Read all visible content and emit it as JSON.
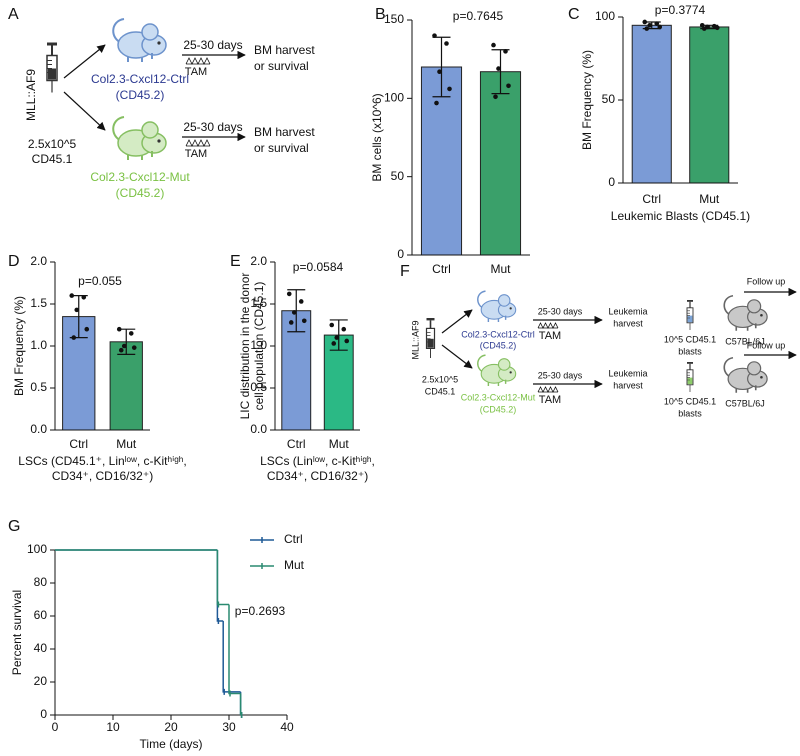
{
  "diagram_a": {
    "panel_label": "A",
    "donor": "MLL::AF9",
    "dose": "2.5x10^5",
    "dose_marker": "CD45.1",
    "groups": [
      {
        "name": "Col2.3-Cxcl12-Ctrl",
        "marker": "(CD45.2)",
        "time": "25-30 days",
        "treatment": "TAM",
        "outcome": [
          "BM harvest",
          "or survival"
        ]
      },
      {
        "name": "Col2.3-Cxcl12-Mut",
        "marker": "(CD45.2)",
        "time": "25-30 days",
        "treatment": "TAM",
        "outcome": [
          "BM harvest",
          "or survival"
        ]
      }
    ]
  },
  "diagram_f": {
    "panel_label": "F",
    "donor": "MLL::AF9",
    "dose": "2.5x10^5",
    "dose_marker": "CD45.1",
    "groups": [
      {
        "name": "Col2.3-Cxcl12-Ctrl",
        "marker": "(CD45.2)",
        "time": "25-30 days",
        "treatment": "TAM",
        "harvest": [
          "Leukemia",
          "harvest"
        ],
        "transplant": [
          "10^5 CD45.1",
          "blasts"
        ],
        "recipient": "C57BL/6J",
        "followup": "Follow up"
      },
      {
        "name": "Col2.3-Cxcl12-Mut",
        "marker": "(CD45.2)",
        "time": "25-30 days",
        "treatment": "TAM",
        "harvest": [
          "Leukemia",
          "harvest"
        ],
        "transplant": [
          "10^5 CD45.1",
          "blasts"
        ],
        "recipient": "C57BL/6J",
        "followup": "Follow up"
      }
    ]
  },
  "chart_data": [
    {
      "type": "bar",
      "panel_label": "B",
      "categories": [
        "Ctrl",
        "Mut"
      ],
      "values": [
        120,
        117
      ],
      "errors": [
        19,
        14
      ],
      "points": [
        [
          140,
          135,
          117,
          106,
          97
        ],
        [
          134,
          130,
          119,
          108,
          101
        ]
      ],
      "colors": [
        "#7b9bd6",
        "#3aa06a"
      ],
      "ylabel": "BM cells (x10^6)",
      "ylim": [
        0,
        150
      ],
      "yticks": [
        0,
        50,
        100,
        150
      ],
      "annotation": "p=0.7645"
    },
    {
      "type": "bar",
      "panel_label": "C",
      "categories": [
        "Ctrl",
        "Mut"
      ],
      "values": [
        95,
        94
      ],
      "errors": [
        2,
        1
      ],
      "points": [
        [
          97,
          96,
          95,
          94,
          93
        ],
        [
          95,
          94.5,
          94,
          93.5,
          93
        ]
      ],
      "colors": [
        "#7b9bd6",
        "#3aa06a"
      ],
      "ylabel": "BM Frequency (%)",
      "xlabel": "Leukemic Blasts (CD45.1)",
      "ylim": [
        0,
        100
      ],
      "yticks": [
        0,
        50,
        100
      ],
      "annotation": "p=0.3774"
    },
    {
      "type": "bar",
      "panel_label": "D",
      "categories": [
        "Ctrl",
        "Mut"
      ],
      "values": [
        1.35,
        1.05
      ],
      "errors": [
        0.25,
        0.15
      ],
      "points": [
        [
          1.6,
          1.58,
          1.43,
          1.2,
          1.1
        ],
        [
          1.2,
          1.15,
          1.0,
          0.98,
          0.95
        ]
      ],
      "colors": [
        "#7b9bd6",
        "#3aa06a"
      ],
      "ylabel": "BM Frequency (%)",
      "xlabel": [
        "LSCs (CD45.1⁺, Linˡᵒʷ, c-Kitʰⁱᵍʰ,",
        "CD34⁺, CD16/32⁺)"
      ],
      "ylim": [
        0,
        2
      ],
      "yticks": [
        {
          "value": 0,
          "label": "0.0"
        },
        0.5,
        {
          "value": 1,
          "label": "1.0"
        },
        1.5,
        {
          "value": 2,
          "label": "2.0"
        }
      ],
      "annotation": "p=0.055"
    },
    {
      "type": "bar",
      "panel_label": "E",
      "categories": [
        "Ctrl",
        "Mut"
      ],
      "values": [
        1.42,
        1.13
      ],
      "errors": [
        0.25,
        0.18
      ],
      "points": [
        [
          1.62,
          1.53,
          1.4,
          1.3,
          1.28
        ],
        [
          1.25,
          1.2,
          1.1,
          1.06,
          1.03
        ]
      ],
      "colors": [
        "#7b9bd6",
        "#2bb985"
      ],
      "ylabel": [
        "LIC distribution in the donor",
        "cell population (CD45.1)"
      ],
      "xlabel": [
        "LSCs (Linˡᵒʷ, c-Kitʰⁱᵍʰ,",
        "CD34⁺, CD16/32⁺)"
      ],
      "ylim": [
        0,
        2
      ],
      "yticks": [
        {
          "value": 0,
          "label": "0.0"
        },
        0.5,
        {
          "value": 1,
          "label": "1.0"
        },
        1.5,
        {
          "value": 2,
          "label": "2.0"
        }
      ],
      "annotation": "p=0.0584"
    },
    {
      "type": "survival",
      "panel_label": "G",
      "xlabel": "Time (days)",
      "ylabel": "Percent survival",
      "series": [
        {
          "name": "Ctrl",
          "color": "#1f5a96",
          "x": [
            0,
            28,
            29,
            32
          ],
          "values": [
            100,
            57,
            14,
            0
          ]
        },
        {
          "name": "Mut",
          "color": "#2a8a70",
          "x": [
            0,
            28,
            30,
            32
          ],
          "values": [
            100,
            67,
            13,
            0
          ]
        }
      ],
      "xlim": [
        0,
        40
      ],
      "xticks": [
        0,
        10,
        20,
        30,
        40
      ],
      "ylim": [
        0,
        100
      ],
      "yticks": [
        0,
        20,
        40,
        60,
        80,
        100
      ],
      "annotation": "p=0.2693",
      "legend": "upper right"
    }
  ]
}
